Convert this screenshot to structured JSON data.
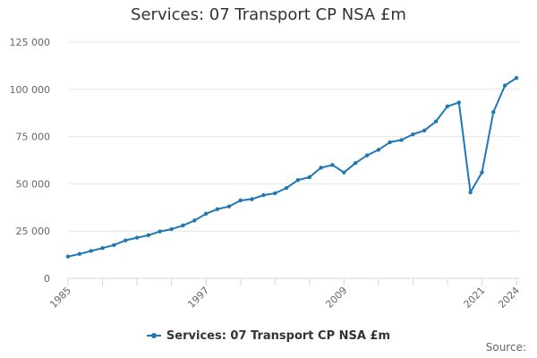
{
  "colors": {
    "series": "#1f78b4",
    "grid": "#e6e6e6",
    "axis": "#ccd6eb",
    "text": "#333333"
  },
  "chart_data": {
    "type": "line",
    "title": "Services: 07 Transport CP NSA £m",
    "xlabel": "",
    "ylabel": "",
    "ylim": [
      0,
      125000
    ],
    "xlim": [
      1985,
      2024
    ],
    "y_ticks": [
      {
        "value": 0,
        "label": "0"
      },
      {
        "value": 25000,
        "label": "25 000"
      },
      {
        "value": 50000,
        "label": "50 000"
      },
      {
        "value": 75000,
        "label": "75 000"
      },
      {
        "value": 100000,
        "label": "100 000"
      },
      {
        "value": 125000,
        "label": "125 000"
      }
    ],
    "x_ticks": [
      {
        "value": 1985,
        "label": "1985"
      },
      {
        "value": 1997,
        "label": "1997"
      },
      {
        "value": 2009,
        "label": "2009"
      },
      {
        "value": 2021,
        "label": "2021"
      },
      {
        "value": 2024,
        "label": "2024"
      }
    ],
    "x_minor_ticks": [
      1988,
      1991,
      1994,
      2000,
      2003,
      2006,
      2012,
      2015,
      2018
    ],
    "grid": true,
    "legend": "bottom-center",
    "series": [
      {
        "name": "Services: 07 Transport CP NSA £m",
        "x": [
          1985,
          1986,
          1987,
          1988,
          1989,
          1990,
          1991,
          1992,
          1993,
          1994,
          1995,
          1996,
          1997,
          1998,
          1999,
          2000,
          2001,
          2002,
          2003,
          2004,
          2005,
          2006,
          2007,
          2008,
          2009,
          2010,
          2011,
          2012,
          2013,
          2014,
          2015,
          2016,
          2017,
          2018,
          2019,
          2020,
          2021,
          2022,
          2023,
          2024
        ],
        "values": [
          11500,
          12900,
          14500,
          16000,
          17600,
          20100,
          21500,
          22800,
          24800,
          26000,
          28000,
          30600,
          34200,
          36600,
          38000,
          41200,
          41900,
          44000,
          45000,
          47800,
          52000,
          53500,
          58500,
          60000,
          56000,
          61000,
          65000,
          68000,
          72000,
          73200,
          76200,
          78200,
          83000,
          91000,
          93000,
          45500,
          56000,
          88000,
          102000,
          106000
        ]
      }
    ]
  },
  "legend": {
    "label": "Services: 07 Transport CP NSA £m"
  },
  "source": {
    "label": "Source:"
  }
}
